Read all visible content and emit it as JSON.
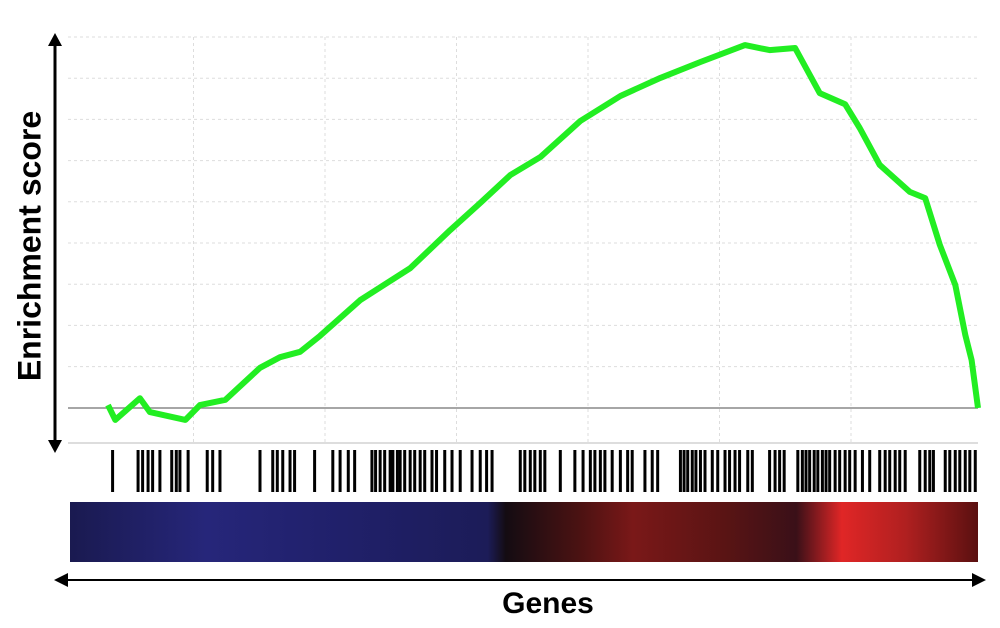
{
  "chart_data": {
    "type": "line",
    "y_label": "Enrichment score",
    "x_label": "Genes",
    "color": "#22ee22",
    "hit_color": "#000000",
    "xlim": [
      0,
      100
    ],
    "ylim": [
      -0.1,
      0.9
    ],
    "x": [
      4.4,
      5.2,
      7.9,
      9.0,
      12.9,
      14.5,
      17.3,
      21.1,
      23.3,
      25.5,
      27.7,
      32.1,
      37.6,
      42.0,
      45.3,
      48.6,
      51.9,
      56.3,
      60.7,
      65.1,
      69.5,
      74.4,
      77.1,
      79.9,
      82.6,
      85.4,
      87.0,
      89.2,
      92.5,
      94.2,
      95.8,
      97.5,
      98.6,
      99.3,
      100
    ],
    "values": [
      0.007,
      -0.029,
      0.024,
      -0.01,
      -0.029,
      0.007,
      0.02,
      0.098,
      0.124,
      0.137,
      0.176,
      0.263,
      0.341,
      0.434,
      0.5,
      0.568,
      0.612,
      0.7,
      0.761,
      0.805,
      0.844,
      0.885,
      0.873,
      0.878,
      0.768,
      0.741,
      0.683,
      0.593,
      0.527,
      0.512,
      0.398,
      0.3,
      0.178,
      0.117,
      0
    ],
    "hits": [
      4.9,
      7.7,
      8.2,
      8.8,
      9.3,
      10.1,
      11.4,
      11.9,
      12.3,
      13.2,
      15.3,
      15.9,
      16.7,
      21.1,
      22.5,
      23.0,
      23.6,
      24.4,
      24.9,
      27.1,
      29.1,
      29.9,
      30.8,
      31.5,
      33.4,
      33.8,
      34.3,
      34.8,
      35.4,
      35.7,
      36.2,
      36.5,
      37.0,
      37.6,
      38.1,
      38.7,
      39.2,
      40.0,
      40.5,
      41.4,
      42.2,
      43.1,
      44.4,
      45.3,
      46.0,
      46.6,
      49.7,
      50.2,
      50.8,
      51.3,
      51.9,
      52.4,
      54.1,
      55.7,
      56.6,
      57.4,
      57.9,
      58.5,
      59.0,
      59.8,
      60.7,
      61.5,
      62.0,
      63.4,
      64.2,
      64.8,
      67.3,
      67.7,
      68.1,
      68.6,
      69.0,
      69.5,
      70.0,
      70.8,
      71.4,
      72.2,
      72.7,
      73.3,
      73.8,
      74.7,
      75.2,
      77.1,
      77.7,
      78.2,
      78.7,
      80.2,
      80.7,
      81.1,
      81.5,
      82.0,
      82.4,
      82.9,
      83.3,
      83.7,
      84.3,
      84.8,
      85.4,
      85.9,
      86.5,
      87.3,
      88.1,
      89.2,
      89.8,
      90.3,
      90.9,
      91.4,
      92.0,
      93.6,
      94.2,
      94.7,
      95.1,
      96.4,
      96.9,
      97.5,
      98.0,
      98.6,
      99.1,
      99.7
    ]
  }
}
